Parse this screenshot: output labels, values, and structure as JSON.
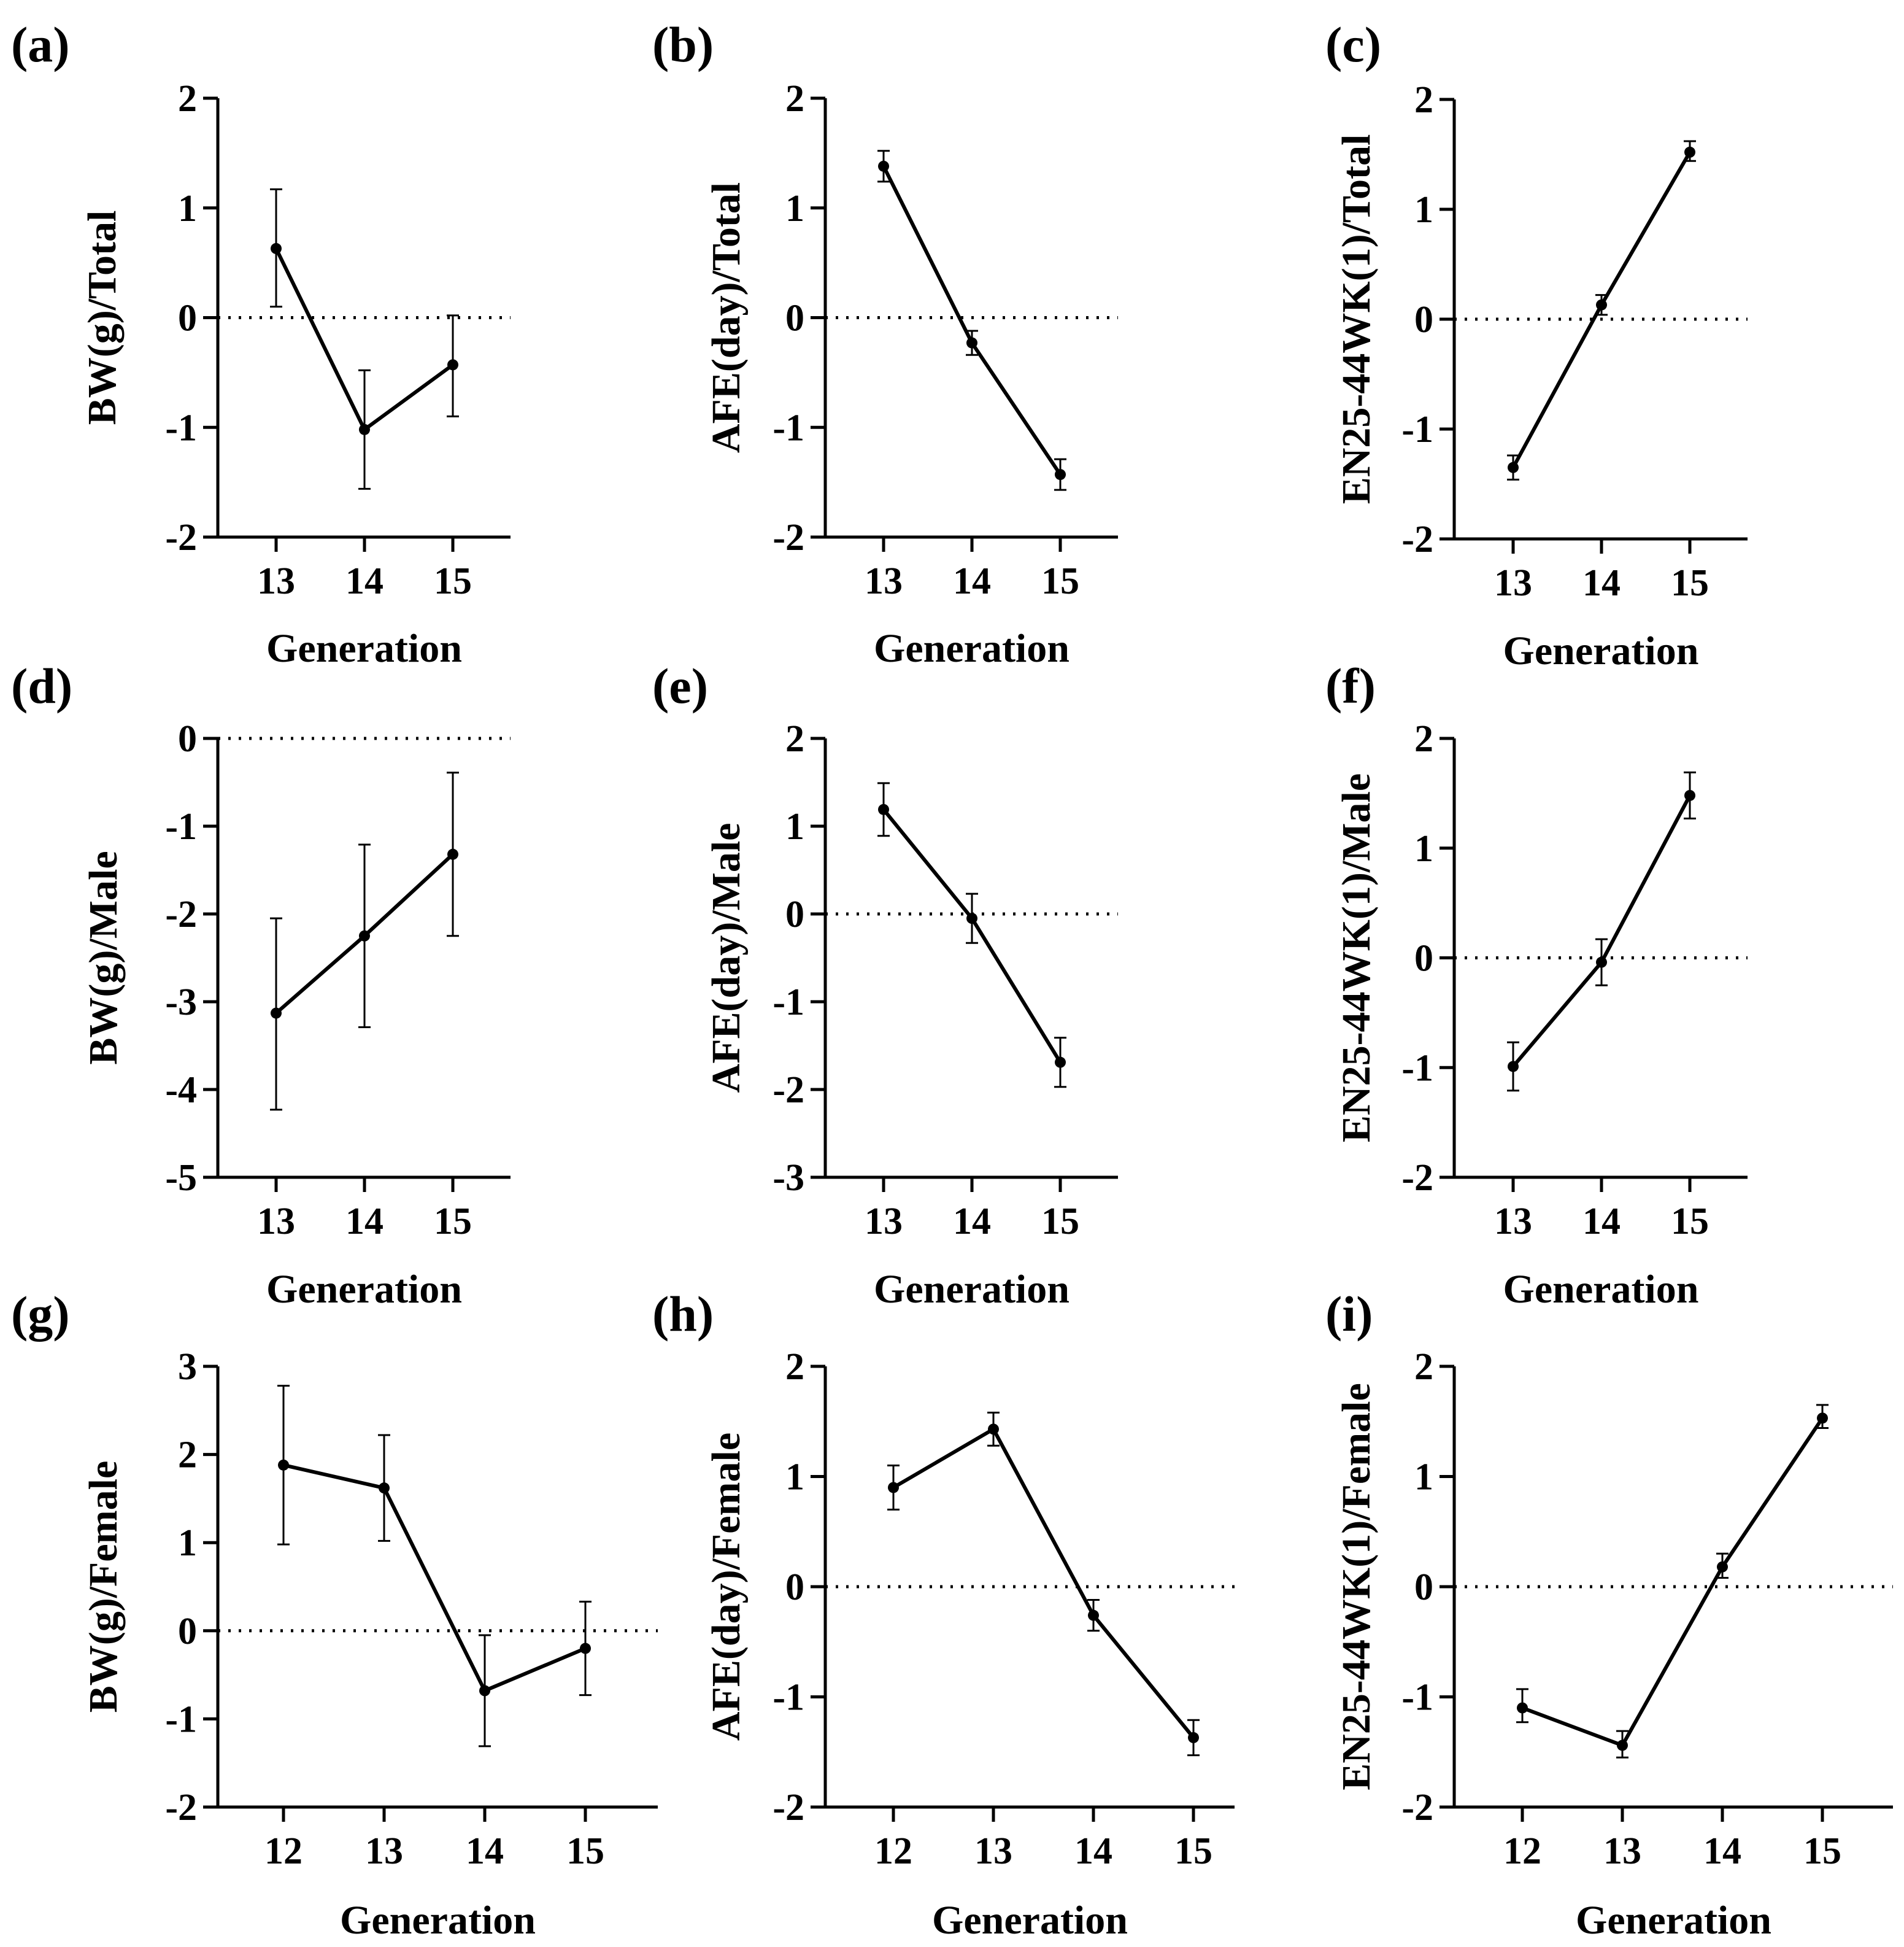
{
  "chart_data": [
    {
      "id": "a",
      "label": "(a)",
      "type": "line",
      "xlabel": "Generation",
      "ylabel": "BW(g)/Total",
      "categories": [
        "13",
        "14",
        "15"
      ],
      "y_ticks": [
        "-2",
        "-1",
        "0",
        "1",
        "2"
      ],
      "ylim": [
        -2,
        2
      ],
      "values": [
        0.63,
        -1.02,
        -0.43
      ],
      "err_low": [
        0.1,
        -1.56,
        -0.9
      ],
      "err_high": [
        1.17,
        -0.48,
        0.02
      ],
      "reference_line": 0
    },
    {
      "id": "b",
      "label": "(b)",
      "type": "line",
      "xlabel": "Generation",
      "ylabel": "AFE(day)/Total",
      "categories": [
        "13",
        "14",
        "15"
      ],
      "y_ticks": [
        "-2",
        "-1",
        "0",
        "1",
        "2"
      ],
      "ylim": [
        -2,
        2
      ],
      "values": [
        1.38,
        -0.23,
        -1.43
      ],
      "err_low": [
        1.24,
        -0.34,
        -1.57
      ],
      "err_high": [
        1.52,
        -0.12,
        -1.29
      ],
      "reference_line": 0
    },
    {
      "id": "c",
      "label": "(c)",
      "type": "line",
      "xlabel": "Generation",
      "ylabel": "EN25-44WK(1)/Total",
      "categories": [
        "13",
        "14",
        "15"
      ],
      "y_ticks": [
        "-2",
        "-1",
        "0",
        "1",
        "2"
      ],
      "ylim": [
        -2,
        2
      ],
      "values": [
        -1.35,
        0.13,
        1.52
      ],
      "err_low": [
        -1.46,
        0.04,
        1.44
      ],
      "err_high": [
        -1.24,
        0.22,
        1.62
      ],
      "reference_line": 0
    },
    {
      "id": "d",
      "label": "(d)",
      "type": "line",
      "xlabel": "Generation",
      "ylabel": "BW(g)/Male",
      "categories": [
        "13",
        "14",
        "15"
      ],
      "y_ticks": [
        "-5",
        "-4",
        "-3",
        "-2",
        "-1",
        "0"
      ],
      "ylim": [
        -5,
        0
      ],
      "values": [
        -3.13,
        -2.25,
        -1.32
      ],
      "err_low": [
        -4.23,
        -3.29,
        -2.25
      ],
      "err_high": [
        -2.05,
        -1.21,
        -0.39
      ],
      "reference_line": 0
    },
    {
      "id": "e",
      "label": "(e)",
      "type": "line",
      "xlabel": "Generation",
      "ylabel": "AFE(day)/Male",
      "categories": [
        "13",
        "14",
        "15"
      ],
      "y_ticks": [
        "-3",
        "-2",
        "-1",
        "0",
        "1",
        "2"
      ],
      "ylim": [
        -3,
        2
      ],
      "values": [
        1.19,
        -0.05,
        -1.69
      ],
      "err_low": [
        0.89,
        -0.33,
        -1.97
      ],
      "err_high": [
        1.49,
        0.23,
        -1.41
      ],
      "reference_line": 0
    },
    {
      "id": "f",
      "label": "(f)",
      "type": "line",
      "xlabel": "Generation",
      "ylabel": "EN25-44WK(1)/Male",
      "categories": [
        "13",
        "14",
        "15"
      ],
      "y_ticks": [
        "-2",
        "-1",
        "0",
        "1",
        "2"
      ],
      "ylim": [
        -2,
        2
      ],
      "values": [
        -0.99,
        -0.04,
        1.48
      ],
      "err_low": [
        -1.21,
        -0.25,
        1.27
      ],
      "err_high": [
        -0.77,
        0.17,
        1.69
      ],
      "reference_line": 0
    },
    {
      "id": "g",
      "label": "(g)",
      "type": "line",
      "xlabel": "Generation",
      "ylabel": "BW(g)/Female",
      "categories": [
        "12",
        "13",
        "14",
        "15"
      ],
      "y_ticks": [
        "-2",
        "-1",
        "0",
        "1",
        "2",
        "3"
      ],
      "ylim": [
        -2,
        3
      ],
      "values": [
        1.88,
        1.62,
        -0.68,
        -0.2
      ],
      "err_low": [
        0.98,
        1.02,
        -1.31,
        -0.73
      ],
      "err_high": [
        2.78,
        2.22,
        -0.05,
        0.33
      ],
      "reference_line": 0
    },
    {
      "id": "h",
      "label": "(h)",
      "type": "line",
      "xlabel": "Generation",
      "ylabel": "AFE(day)/Female",
      "categories": [
        "12",
        "13",
        "14",
        "15"
      ],
      "y_ticks": [
        "-2",
        "-1",
        "0",
        "1",
        "2"
      ],
      "ylim": [
        -2,
        2
      ],
      "values": [
        0.9,
        1.43,
        -0.26,
        -1.37
      ],
      "err_low": [
        0.7,
        1.28,
        -0.4,
        -1.53
      ],
      "err_high": [
        1.1,
        1.58,
        -0.12,
        -1.21
      ],
      "reference_line": 0
    },
    {
      "id": "i",
      "label": "(i)",
      "type": "line",
      "xlabel": "Generation",
      "ylabel": "EN25-44WK(1)/Female",
      "categories": [
        "12",
        "13",
        "14",
        "15"
      ],
      "y_ticks": [
        "-2",
        "-1",
        "0",
        "1",
        "2"
      ],
      "ylim": [
        -2,
        2
      ],
      "values": [
        -1.1,
        -1.44,
        0.18,
        1.53
      ],
      "err_low": [
        -1.23,
        -1.55,
        0.08,
        1.44
      ],
      "err_high": [
        -0.93,
        -1.31,
        0.3,
        1.65
      ],
      "reference_line": 0
    }
  ]
}
